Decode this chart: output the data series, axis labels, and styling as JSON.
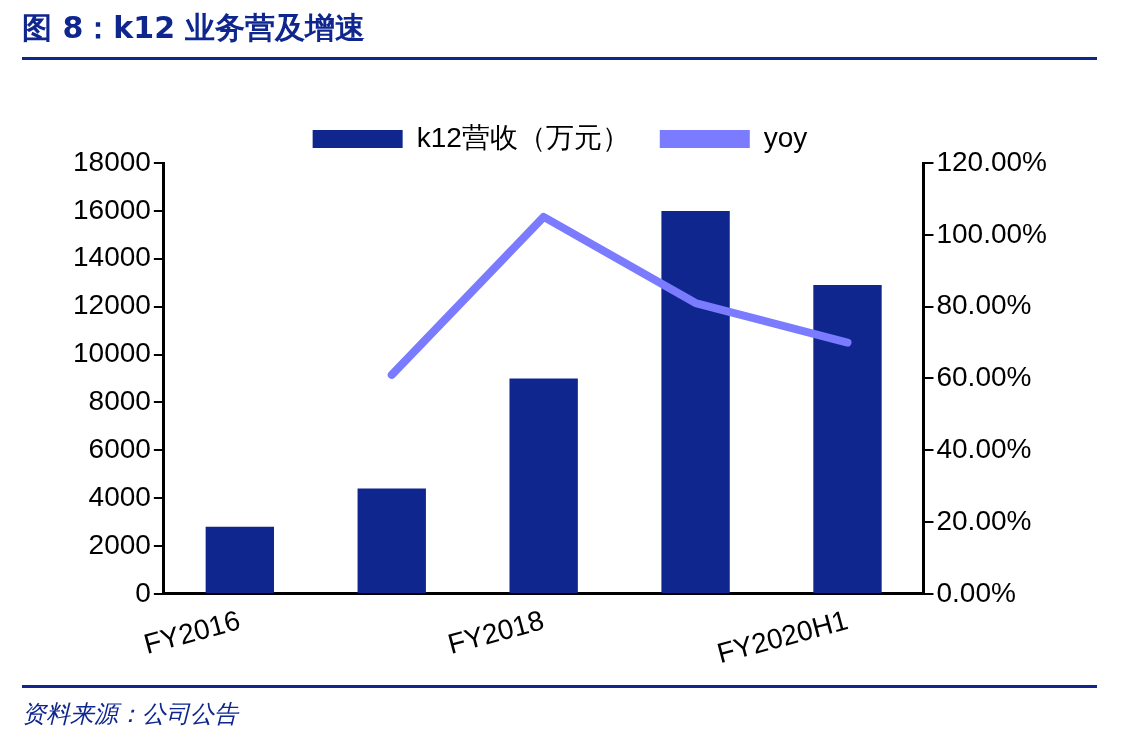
{
  "chart_data": {
    "type": "bar",
    "title": "图 8：k12 业务营及增速",
    "categories": [
      "FY2016",
      null,
      "FY2018",
      null,
      "FY2020H1"
    ],
    "series": [
      {
        "name": "k12营收（万元）",
        "color": "#0f268f",
        "values": [
          2800,
          4400,
          9000,
          16000,
          12900
        ]
      },
      {
        "name": "yoy",
        "type": "line",
        "axis": "y2",
        "color": "#7b7bff",
        "values": [
          null,
          61,
          105,
          81,
          70
        ]
      }
    ],
    "ylim": [
      0,
      18000
    ],
    "yticks": [
      0,
      2000,
      4000,
      6000,
      8000,
      10000,
      12000,
      14000,
      16000,
      18000
    ],
    "y2lim": [
      0,
      120
    ],
    "y2ticks": [
      {
        "value": 0,
        "label": "0.00%"
      },
      {
        "value": 20,
        "label": "20.00%"
      },
      {
        "value": 40,
        "label": "40.00%"
      },
      {
        "value": 60,
        "label": "60.00%"
      },
      {
        "value": 80,
        "label": "80.00%"
      },
      {
        "value": 100,
        "label": "100.00%"
      },
      {
        "value": 120,
        "label": "120.00%"
      }
    ],
    "grid": false,
    "legend": "top",
    "marker": "none",
    "annotations": [
      "资料来源：公司公告"
    ]
  }
}
